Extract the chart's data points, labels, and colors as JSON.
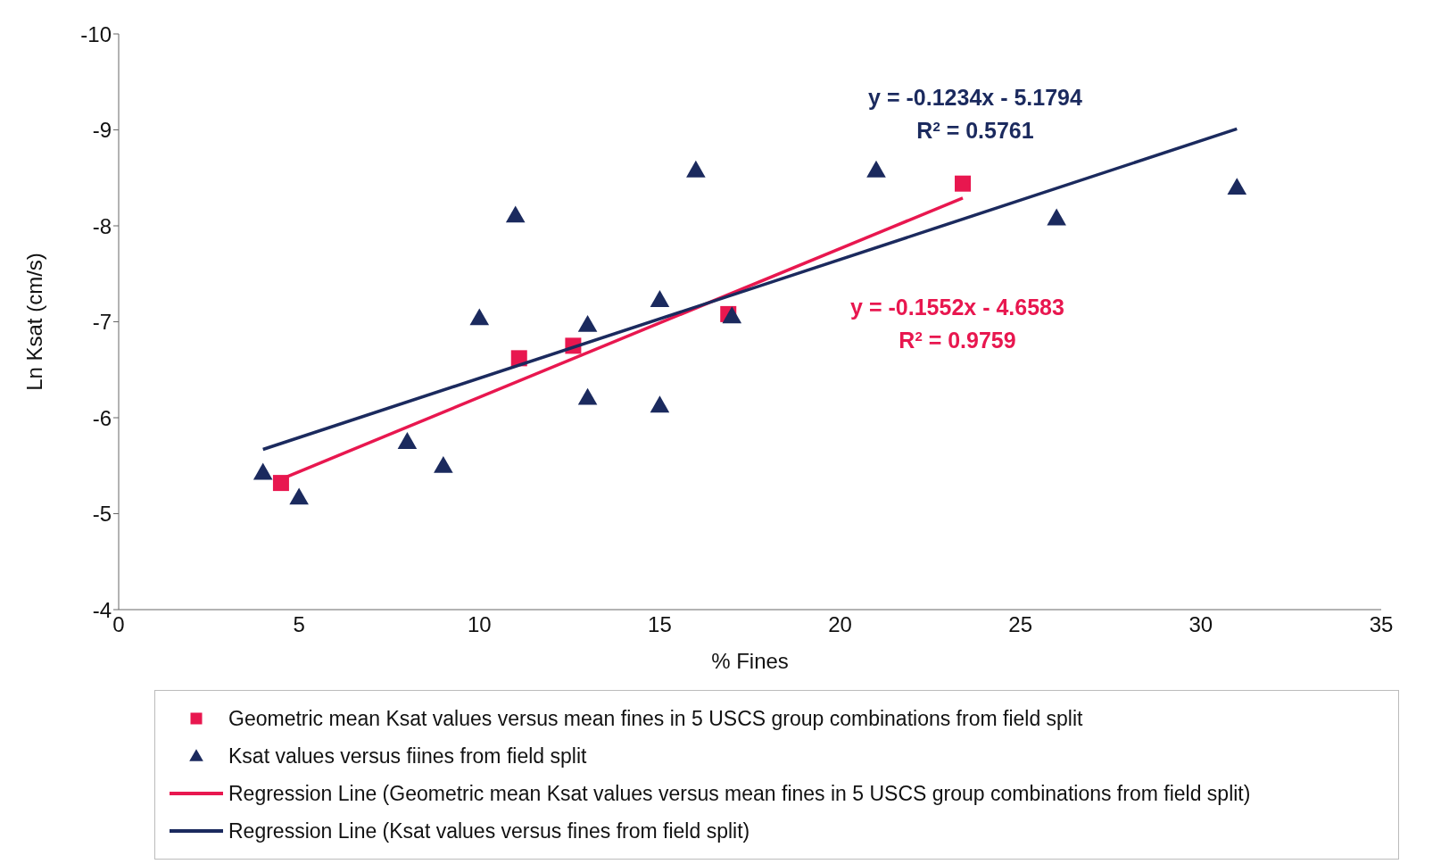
{
  "chart_data": {
    "type": "scatter",
    "xlabel": "% Fines",
    "ylabel": "Ln Ksat (cm/s)",
    "xlim": [
      0,
      35
    ],
    "xticks": [
      0,
      5,
      10,
      15,
      20,
      25,
      30,
      35
    ],
    "ylim": [
      -4,
      -10
    ],
    "yticks": [
      -4,
      -5,
      -6,
      -7,
      -8,
      -9,
      -10
    ],
    "grid": false,
    "legend": "bottom",
    "series": [
      {
        "name": "Geometric mean Ksat values versus mean fines in 5 USCS group combinations from field split",
        "marker": "square",
        "color": "#e8174f",
        "x": [
          4.5,
          11.1,
          12.6,
          16.9,
          23.4
        ],
        "values": [
          -5.32,
          -6.62,
          -6.75,
          -7.08,
          -8.44
        ]
      },
      {
        "name": "Ksat values versus fiines from field split",
        "marker": "triangle",
        "color": "#1b2a5e",
        "x": [
          4,
          5,
          8,
          9,
          10,
          11,
          13,
          13,
          15,
          15,
          16,
          17,
          21,
          26,
          31
        ],
        "values": [
          -5.43,
          -5.17,
          -5.75,
          -5.5,
          -7.04,
          -8.11,
          -6.97,
          -6.21,
          -7.23,
          -6.13,
          -8.58,
          -7.06,
          -8.58,
          -8.08,
          -8.4
        ]
      },
      {
        "name": "Regression Line (Geometric mean Ksat values versus mean fines in 5 USCS group combinations from field split)",
        "type": "line",
        "marker": "none",
        "color": "#e8174f",
        "x": [
          4.5,
          23.4
        ],
        "values": [
          -5.36,
          -8.29
        ]
      },
      {
        "name": "Regression Line (Ksat values versus fines from field split)",
        "type": "line",
        "marker": "none",
        "color": "#1b2a5e",
        "x": [
          4,
          31
        ],
        "values": [
          -5.67,
          -9.01
        ]
      }
    ],
    "annotations": [
      "y = -0.1234x - 5.1794\nR$^{2}$ = 0.5761",
      "y = -0.1552x - 4.6583\nR$^{2}$ = 0.9759"
    ]
  }
}
